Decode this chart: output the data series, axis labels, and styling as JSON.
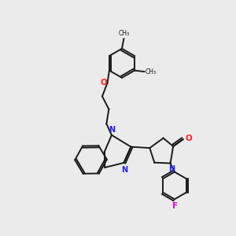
{
  "bg_color": "#ebebeb",
  "bond_color": "#1a1a1a",
  "N_color": "#2020ff",
  "O_color": "#ff2020",
  "F_color": "#dd00dd",
  "lw": 1.4,
  "lw2": 1.4,
  "fig_size": [
    3.0,
    3.0
  ],
  "dpi": 100,
  "xlim": [
    0,
    10
  ],
  "ylim": [
    0,
    10
  ]
}
